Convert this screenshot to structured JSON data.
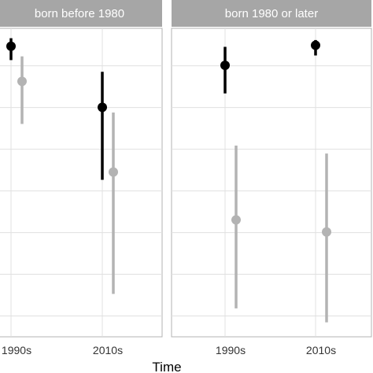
{
  "chart_data": {
    "type": "pointrange",
    "xlabel": "Time",
    "ylabel": "",
    "ylim": [
      0,
      1
    ],
    "categories": [
      "1990s",
      "2010s"
    ],
    "colors": {
      "series_a": "#000000",
      "series_b": "#b3b3b3"
    },
    "panels": [
      {
        "title": "born before 1980",
        "series": [
          {
            "color": "#000000",
            "points": [
              {
                "x": "1990s",
                "y": 0.942,
                "low": 0.897,
                "high": 0.968
              },
              {
                "x": "2010s",
                "y": 0.744,
                "low": 0.509,
                "high": 0.859
              }
            ]
          },
          {
            "color": "#b3b3b3",
            "points": [
              {
                "x": "1990s",
                "y": 0.828,
                "low": 0.69,
                "high": 0.909
              },
              {
                "x": "2010s",
                "y": 0.534,
                "low": 0.139,
                "high": 0.727
              }
            ]
          }
        ]
      },
      {
        "title": "born 1980 or later",
        "series": [
          {
            "color": "#000000",
            "points": [
              {
                "x": "1990s",
                "y": 0.88,
                "low": 0.789,
                "high": 0.94
              },
              {
                "x": "2010s",
                "y": 0.945,
                "low": 0.912,
                "high": 0.962
              }
            ]
          },
          {
            "color": "#b3b3b3",
            "points": [
              {
                "x": "1990s",
                "y": 0.379,
                "low": 0.092,
                "high": 0.62
              },
              {
                "x": "2010s",
                "y": 0.34,
                "low": 0.047,
                "high": 0.594
              }
            ]
          }
        ]
      }
    ]
  }
}
